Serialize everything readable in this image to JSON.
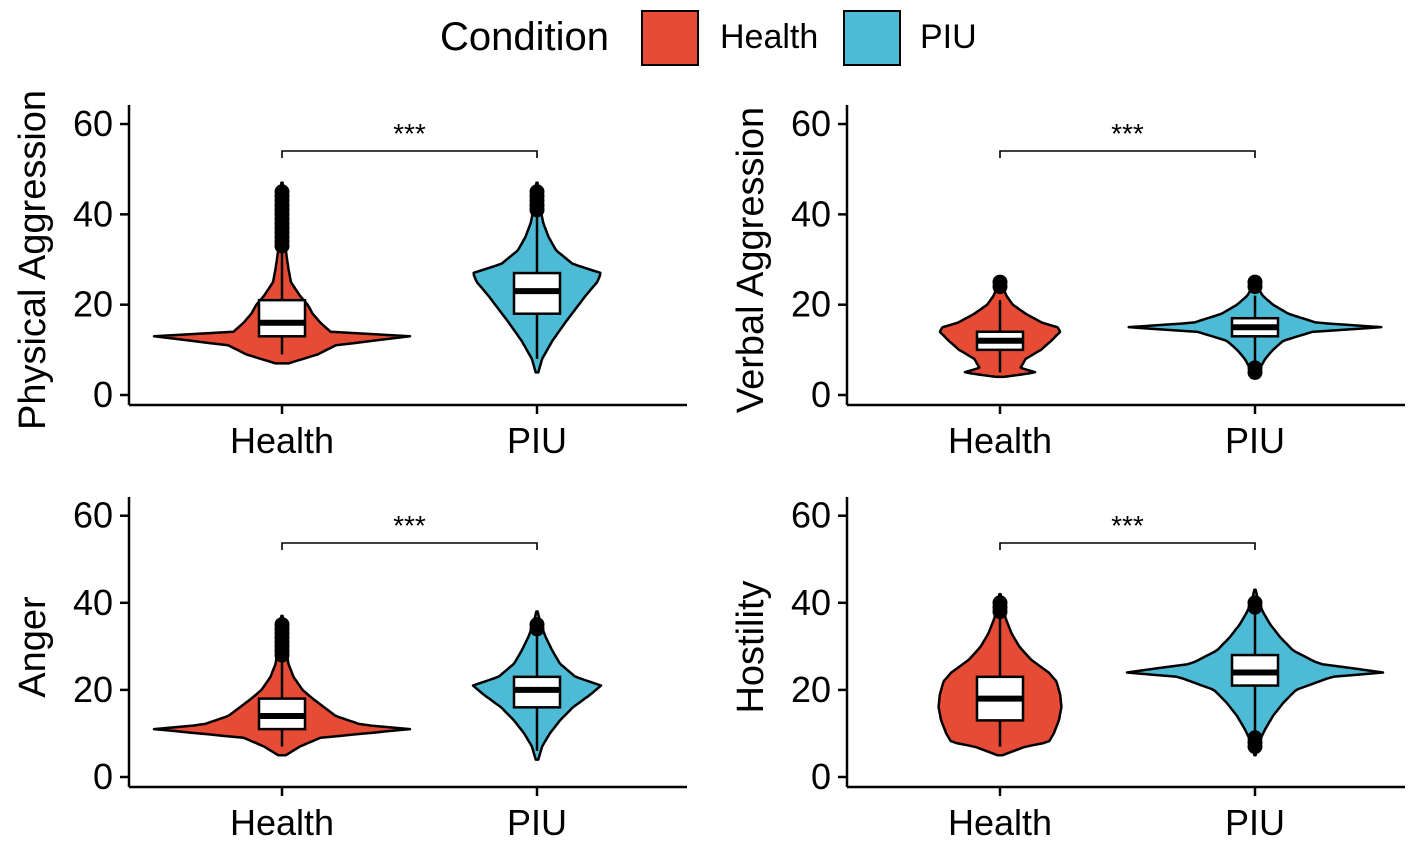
{
  "legend": {
    "title": "Condition",
    "items": [
      {
        "label": "Health",
        "color": "#E64B35"
      },
      {
        "label": "PIU",
        "color": "#4DBBD5"
      }
    ]
  },
  "chart_data": [
    {
      "type": "violin",
      "ylabel": "Physical Aggression",
      "categories": [
        "Health",
        "PIU"
      ],
      "ylim": [
        0,
        62
      ],
      "yticks": [
        0,
        20,
        40,
        60
      ],
      "significance": "***",
      "series": [
        {
          "name": "Health",
          "color": "#E64B35",
          "min": 7,
          "max": 47,
          "q1": 13,
          "median": 16,
          "q3": 21,
          "whisker_low": 9,
          "whisker_high": 32,
          "outliers": [
            33,
            34,
            35,
            36,
            37,
            38,
            39,
            40,
            41,
            42,
            43,
            44,
            45
          ],
          "density": [
            [
              7,
              0.05
            ],
            [
              9,
              0.28
            ],
            [
              11,
              0.42
            ],
            [
              13,
              1.0
            ],
            [
              14,
              0.38
            ],
            [
              16,
              0.3
            ],
            [
              18,
              0.24
            ],
            [
              20,
              0.2
            ],
            [
              22,
              0.14
            ],
            [
              25,
              0.07
            ],
            [
              28,
              0.05
            ],
            [
              32,
              0.03
            ],
            [
              36,
              0.02
            ],
            [
              40,
              0.01
            ],
            [
              44,
              0.01
            ],
            [
              47,
              0.005
            ]
          ]
        },
        {
          "name": "PIU",
          "color": "#4DBBD5",
          "min": 5,
          "max": 47,
          "q1": 18,
          "median": 23,
          "q3": 27,
          "whisker_low": 8,
          "whisker_high": 40,
          "outliers": [
            41,
            42,
            43,
            44,
            45
          ],
          "density": [
            [
              5,
              0.01
            ],
            [
              8,
              0.04
            ],
            [
              12,
              0.12
            ],
            [
              16,
              0.22
            ],
            [
              19,
              0.3
            ],
            [
              22,
              0.38
            ],
            [
              25,
              0.47
            ],
            [
              27,
              0.5
            ],
            [
              29,
              0.28
            ],
            [
              32,
              0.15
            ],
            [
              35,
              0.09
            ],
            [
              38,
              0.05
            ],
            [
              42,
              0.02
            ],
            [
              45,
              0.01
            ],
            [
              47,
              0.005
            ]
          ]
        }
      ]
    },
    {
      "type": "violin",
      "ylabel": "Verbal Aggression",
      "categories": [
        "Health",
        "PIU"
      ],
      "ylim": [
        0,
        62
      ],
      "yticks": [
        0,
        20,
        40,
        60
      ],
      "significance": "***",
      "series": [
        {
          "name": "Health",
          "color": "#E64B35",
          "min": 4,
          "max": 25,
          "q1": 10,
          "median": 12,
          "q3": 14,
          "whisker_low": 5,
          "whisker_high": 21,
          "outliers": [
            24,
            25
          ],
          "density": [
            [
              4,
              0.03
            ],
            [
              5,
              0.28
            ],
            [
              6,
              0.16
            ],
            [
              8,
              0.2
            ],
            [
              10,
              0.32
            ],
            [
              12,
              0.4
            ],
            [
              14,
              0.47
            ],
            [
              15,
              0.45
            ],
            [
              16,
              0.33
            ],
            [
              18,
              0.2
            ],
            [
              20,
              0.1
            ],
            [
              22,
              0.05
            ],
            [
              24,
              0.02
            ],
            [
              25,
              0.01
            ]
          ]
        },
        {
          "name": "PIU",
          "color": "#4DBBD5",
          "min": 4,
          "max": 25,
          "q1": 13,
          "median": 15,
          "q3": 17,
          "whisker_low": 7,
          "whisker_high": 22,
          "outliers": [
            5,
            6,
            24,
            25
          ],
          "density": [
            [
              4,
              0.01
            ],
            [
              6,
              0.04
            ],
            [
              8,
              0.08
            ],
            [
              10,
              0.14
            ],
            [
              12,
              0.22
            ],
            [
              14,
              0.45
            ],
            [
              15,
              1.0
            ],
            [
              16,
              0.48
            ],
            [
              18,
              0.26
            ],
            [
              20,
              0.14
            ],
            [
              22,
              0.06
            ],
            [
              24,
              0.02
            ],
            [
              25,
              0.01
            ]
          ]
        }
      ]
    },
    {
      "type": "violin",
      "ylabel": "Anger",
      "categories": [
        "Health",
        "PIU"
      ],
      "ylim": [
        0,
        62
      ],
      "yticks": [
        0,
        20,
        40,
        60
      ],
      "significance": "***",
      "series": [
        {
          "name": "Health",
          "color": "#E64B35",
          "min": 5,
          "max": 37,
          "q1": 11,
          "median": 14,
          "q3": 18,
          "whisker_low": 7,
          "whisker_high": 27,
          "outliers": [
            28,
            29,
            30,
            31,
            32,
            33,
            34,
            35
          ],
          "density": [
            [
              5,
              0.03
            ],
            [
              7,
              0.14
            ],
            [
              9,
              0.3
            ],
            [
              11,
              1.0
            ],
            [
              12,
              0.62
            ],
            [
              14,
              0.42
            ],
            [
              16,
              0.33
            ],
            [
              18,
              0.24
            ],
            [
              20,
              0.16
            ],
            [
              23,
              0.09
            ],
            [
              26,
              0.05
            ],
            [
              30,
              0.03
            ],
            [
              34,
              0.02
            ],
            [
              37,
              0.005
            ]
          ]
        },
        {
          "name": "PIU",
          "color": "#4DBBD5",
          "min": 4,
          "max": 38,
          "q1": 16,
          "median": 20,
          "q3": 23,
          "whisker_low": 6,
          "whisker_high": 33,
          "outliers": [
            34,
            35
          ],
          "density": [
            [
              4,
              0.01
            ],
            [
              7,
              0.04
            ],
            [
              10,
              0.1
            ],
            [
              13,
              0.18
            ],
            [
              16,
              0.28
            ],
            [
              19,
              0.42
            ],
            [
              21,
              0.5
            ],
            [
              23,
              0.3
            ],
            [
              26,
              0.18
            ],
            [
              29,
              0.12
            ],
            [
              32,
              0.07
            ],
            [
              35,
              0.03
            ],
            [
              38,
              0.005
            ]
          ]
        }
      ]
    },
    {
      "type": "violin",
      "ylabel": "Hostility",
      "categories": [
        "Health",
        "PIU"
      ],
      "ylim": [
        0,
        62
      ],
      "yticks": [
        0,
        20,
        40,
        60
      ],
      "significance": "***",
      "series": [
        {
          "name": "Health",
          "color": "#E64B35",
          "min": 5,
          "max": 42,
          "q1": 13,
          "median": 18,
          "q3": 23,
          "whisker_low": 7,
          "whisker_high": 37,
          "outliers": [
            38,
            39,
            40
          ],
          "density": [
            [
              5,
              0.02
            ],
            [
              7,
              0.2
            ],
            [
              8,
              0.38
            ],
            [
              10,
              0.42
            ],
            [
              13,
              0.46
            ],
            [
              16,
              0.48
            ],
            [
              19,
              0.47
            ],
            [
              22,
              0.44
            ],
            [
              24,
              0.38
            ],
            [
              27,
              0.24
            ],
            [
              30,
              0.15
            ],
            [
              33,
              0.09
            ],
            [
              36,
              0.05
            ],
            [
              39,
              0.02
            ],
            [
              42,
              0.005
            ]
          ]
        },
        {
          "name": "PIU",
          "color": "#4DBBD5",
          "min": 5,
          "max": 43,
          "q1": 21,
          "median": 24,
          "q3": 28,
          "whisker_low": 10,
          "whisker_high": 38,
          "outliers": [
            7,
            8,
            9,
            39,
            40
          ],
          "density": [
            [
              5,
              0.005
            ],
            [
              8,
              0.03
            ],
            [
              11,
              0.08
            ],
            [
              14,
              0.14
            ],
            [
              17,
              0.22
            ],
            [
              20,
              0.32
            ],
            [
              23,
              0.6
            ],
            [
              24,
              1.0
            ],
            [
              26,
              0.5
            ],
            [
              29,
              0.3
            ],
            [
              32,
              0.2
            ],
            [
              35,
              0.12
            ],
            [
              38,
              0.06
            ],
            [
              41,
              0.02
            ],
            [
              43,
              0.005
            ]
          ]
        }
      ]
    }
  ]
}
